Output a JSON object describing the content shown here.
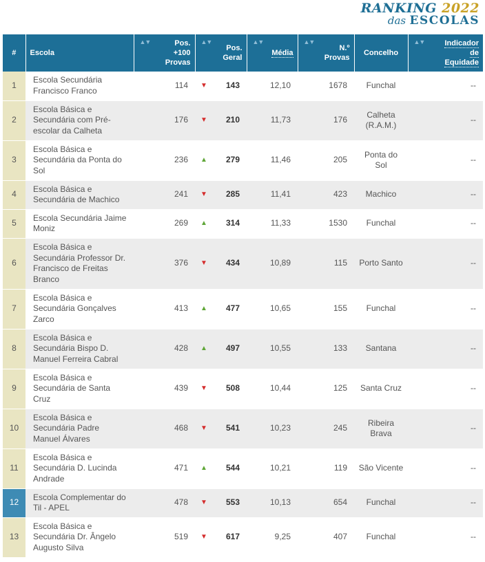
{
  "logo": {
    "ranking": "RANKING",
    "year": "2022",
    "das": "das",
    "escolas": "ESCOLAS"
  },
  "headers": {
    "num": "#",
    "escola": "Escola",
    "pos100_line1": "Pos.",
    "pos100_line2": "+100",
    "pos100_line3": "Provas",
    "posgeral_line1": "Pos.",
    "posgeral_line2": "Geral",
    "media": "Média",
    "nprovas_line1": "N.º",
    "nprovas_line2": "Provas",
    "concelho": "Concelho",
    "equidade_line1": "Indicador",
    "equidade_line2": "de",
    "equidade_line3": "Equidade",
    "sort_icon": "▲▼"
  },
  "rows": [
    {
      "num": "1",
      "escola": "Escola Secundária Francisco Franco",
      "pos100": "114",
      "trend": "down",
      "geral": "143",
      "media": "12,10",
      "provas": "1678",
      "concelho": "Funchal",
      "equidade": "--"
    },
    {
      "num": "2",
      "escola": "Escola Básica e Secundária com Pré-escolar da Calheta",
      "pos100": "176",
      "trend": "down",
      "geral": "210",
      "media": "11,73",
      "provas": "176",
      "concelho": "Calheta (R.A.M.)",
      "equidade": "--"
    },
    {
      "num": "3",
      "escola": "Escola Básica e Secundária da Ponta do Sol",
      "pos100": "236",
      "trend": "up",
      "geral": "279",
      "media": "11,46",
      "provas": "205",
      "concelho": "Ponta do Sol",
      "equidade": "--"
    },
    {
      "num": "4",
      "escola": "Escola Básica e Secundária de Machico",
      "pos100": "241",
      "trend": "down",
      "geral": "285",
      "media": "11,41",
      "provas": "423",
      "concelho": "Machico",
      "equidade": "--"
    },
    {
      "num": "5",
      "escola": "Escola Secundária Jaime Moniz",
      "pos100": "269",
      "trend": "up",
      "geral": "314",
      "media": "11,33",
      "provas": "1530",
      "concelho": "Funchal",
      "equidade": "--"
    },
    {
      "num": "6",
      "escola": "Escola Básica e Secundária Professor Dr. Francisco de Freitas Branco",
      "pos100": "376",
      "trend": "down",
      "geral": "434",
      "media": "10,89",
      "provas": "115",
      "concelho": "Porto Santo",
      "equidade": "--"
    },
    {
      "num": "7",
      "escola": "Escola Básica e Secundária Gonçalves Zarco",
      "pos100": "413",
      "trend": "up",
      "geral": "477",
      "media": "10,65",
      "provas": "155",
      "concelho": "Funchal",
      "equidade": "--"
    },
    {
      "num": "8",
      "escola": "Escola Básica e Secundária Bispo D. Manuel Ferreira Cabral",
      "pos100": "428",
      "trend": "up",
      "geral": "497",
      "media": "10,55",
      "provas": "133",
      "concelho": "Santana",
      "equidade": "--"
    },
    {
      "num": "9",
      "escola": "Escola Básica e Secundária de Santa Cruz",
      "pos100": "439",
      "trend": "down",
      "geral": "508",
      "media": "10,44",
      "provas": "125",
      "concelho": "Santa Cruz",
      "equidade": "--"
    },
    {
      "num": "10",
      "escola": "Escola Básica e Secundária Padre Manuel Álvares",
      "pos100": "468",
      "trend": "down",
      "geral": "541",
      "media": "10,23",
      "provas": "245",
      "concelho": "Ribeira Brava",
      "equidade": "--"
    },
    {
      "num": "11",
      "escola": "Escola Básica e Secundária D. Lucinda Andrade",
      "pos100": "471",
      "trend": "up",
      "geral": "544",
      "media": "10,21",
      "provas": "119",
      "concelho": "São Vicente",
      "equidade": "--"
    },
    {
      "num": "12",
      "escola": "Escola Complementar do Til - APEL",
      "pos100": "478",
      "trend": "down",
      "geral": "553",
      "media": "10,13",
      "provas": "654",
      "concelho": "Funchal",
      "equidade": "--",
      "highlight": true
    },
    {
      "num": "13",
      "escola": "Escola Básica e Secundária Dr. Ângelo Augusto Silva",
      "pos100": "519",
      "trend": "down",
      "geral": "617",
      "media": "9,25",
      "provas": "407",
      "concelho": "Funchal",
      "equidade": "--"
    }
  ],
  "colors": {
    "header": "#1d6f97",
    "num_col": "#e9e5c2",
    "highlight": "#3e8bb4",
    "up": "#5fa637",
    "down": "#d42c2c"
  }
}
